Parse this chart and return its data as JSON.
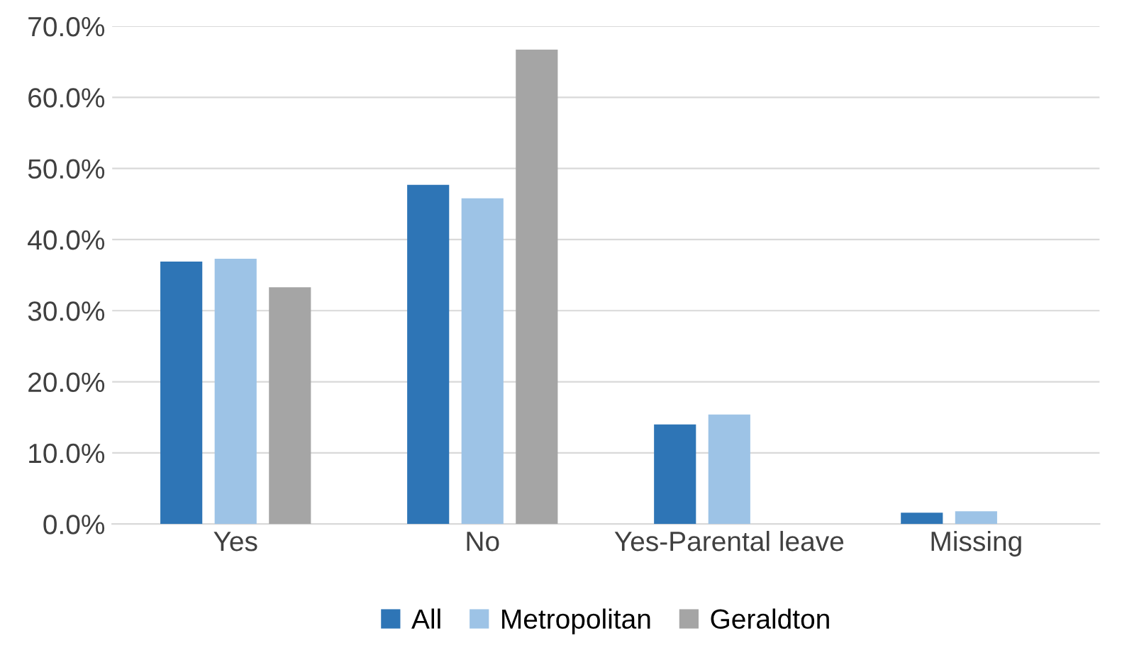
{
  "chart_data": {
    "type": "bar",
    "categories": [
      "Yes",
      "No",
      "Yes-Parental leave",
      "Missing"
    ],
    "series": [
      {
        "name": "All",
        "color": "#2e75b6",
        "values": [
          36.9,
          47.7,
          14.0,
          1.6
        ]
      },
      {
        "name": "Metropolitan",
        "color": "#9dc3e6",
        "values": [
          37.3,
          45.8,
          15.4,
          1.8
        ]
      },
      {
        "name": "Geraldton",
        "color": "#a5a5a5",
        "values": [
          33.3,
          66.7,
          0,
          0
        ]
      }
    ],
    "ylim": [
      0,
      70
    ],
    "yticks": [
      {
        "value": 0,
        "label": "0.0%"
      },
      {
        "value": 10,
        "label": "10.0%"
      },
      {
        "value": 20,
        "label": "20.0%"
      },
      {
        "value": 30,
        "label": "30.0%"
      },
      {
        "value": 40,
        "label": "40.0%"
      },
      {
        "value": 50,
        "label": "50.0%"
      },
      {
        "value": 60,
        "label": "60.0%"
      },
      {
        "value": 70,
        "label": "70.0%"
      }
    ],
    "grid": "y",
    "legend": "bottom"
  }
}
